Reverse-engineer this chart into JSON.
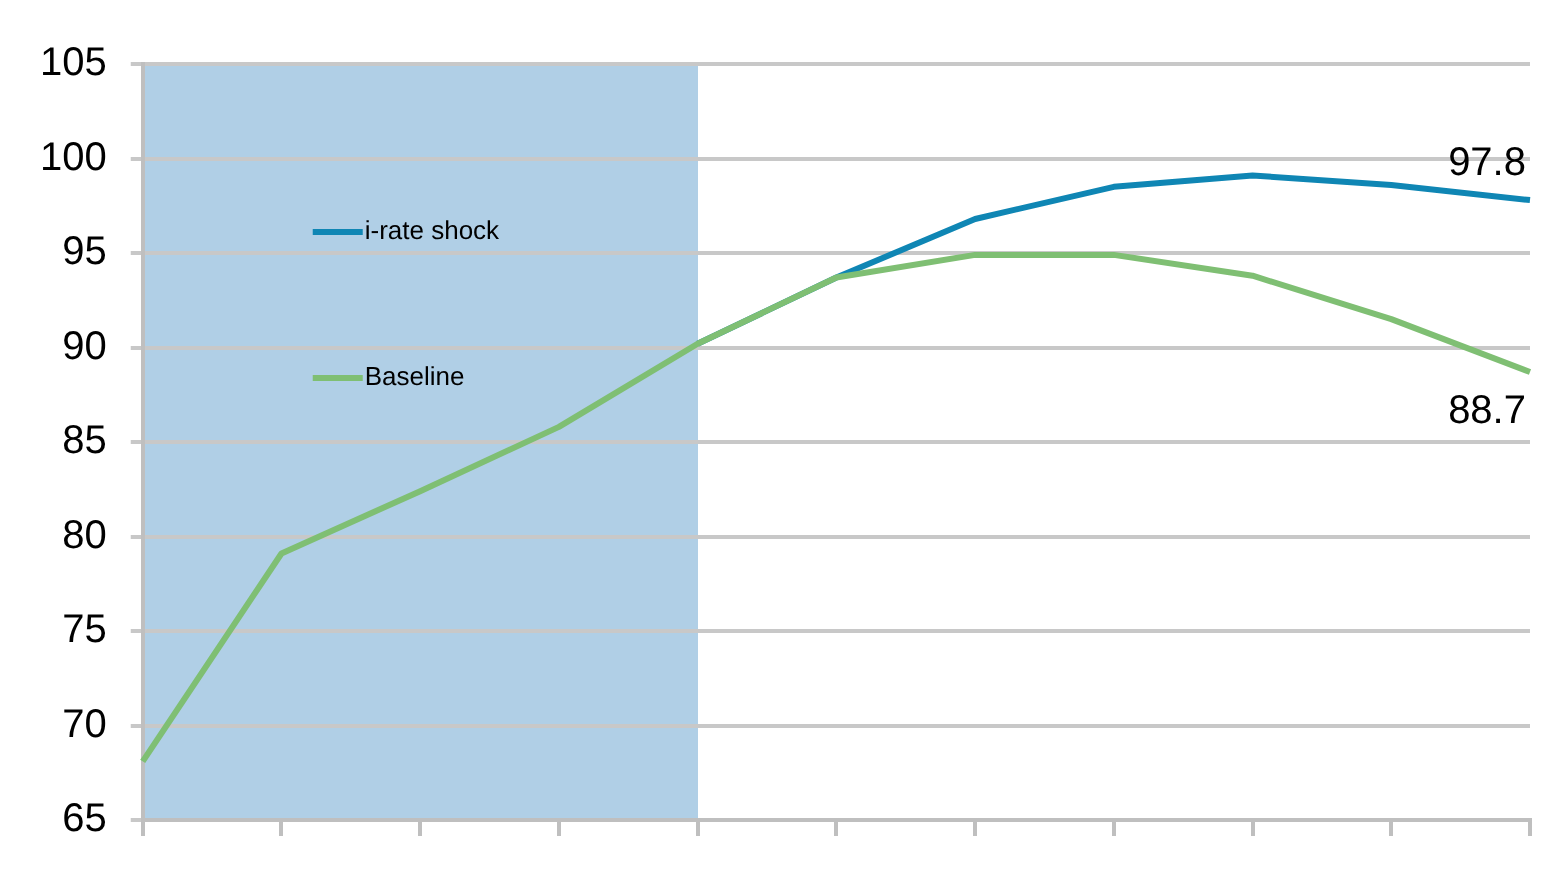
{
  "chart_data": {
    "type": "line",
    "categories": [
      null,
      null,
      null,
      null,
      null,
      null,
      null,
      null,
      null,
      null,
      null
    ],
    "tick_labels": "y",
    "ylim": [
      65,
      105
    ],
    "yticks": [
      65,
      70,
      75,
      80,
      85,
      90,
      95,
      100,
      105
    ],
    "grid": "y",
    "legend": "top left",
    "marker": "none",
    "line_style": "solid",
    "series": [
      {
        "name": "i-rate shock",
        "color": "#0f86b4",
        "values": [
          null,
          null,
          null,
          null,
          90.2,
          93.7,
          96.8,
          98.5,
          99.1,
          98.6,
          97.8
        ],
        "value_labels": [
          null,
          null,
          null,
          null,
          null,
          null,
          null,
          null,
          null,
          null,
          "97.8"
        ]
      },
      {
        "name": "Baseline",
        "color": "#7fbf73",
        "values": [
          68.1,
          79.1,
          82.4,
          85.8,
          90.2,
          93.7,
          94.9,
          94.9,
          93.8,
          91.5,
          88.7
        ],
        "value_labels": [
          null,
          null,
          null,
          null,
          null,
          null,
          null,
          null,
          null,
          null,
          "88.7"
        ]
      }
    ]
  }
}
